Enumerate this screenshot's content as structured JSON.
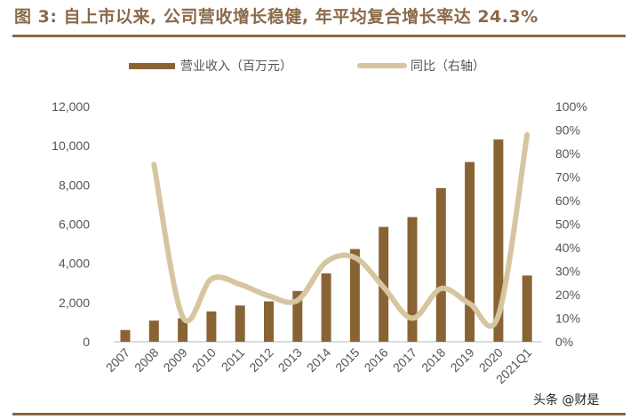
{
  "header": {
    "title": "图 3: 自上市以来, 公司营收增长稳健, 年平均复合增长率达 24.3%"
  },
  "legend": {
    "bar_label": "营业收入（百万元）",
    "line_label": "同比（右轴）"
  },
  "footer": {
    "watermark": "头条 @财是"
  },
  "colors": {
    "bar": "#8a6335",
    "line": "#d6c6a0",
    "rule": "#8b6540",
    "title": "#8a6a4a"
  },
  "chart_data": {
    "type": "bar+line",
    "title": "图 3: 自上市以来, 公司营收增长稳健, 年平均复合增长率达 24.3%",
    "categories": [
      "2007",
      "2008",
      "2009",
      "2010",
      "2011",
      "2012",
      "2013",
      "2014",
      "2015",
      "2016",
      "2017",
      "2018",
      "2019",
      "2020",
      "2021Q1"
    ],
    "series": [
      {
        "name": "营业收入（百万元）",
        "type": "bar",
        "axis": "left",
        "values": [
          600,
          1080,
          1200,
          1550,
          1850,
          2060,
          2590,
          3490,
          4730,
          5860,
          6360,
          7840,
          9170,
          10320,
          3380
        ]
      },
      {
        "name": "同比（右轴）",
        "type": "line",
        "axis": "right",
        "values": [
          null,
          75.4,
          10.6,
          26.7,
          24.4,
          19.5,
          17.6,
          33.9,
          35.8,
          23.2,
          10.0,
          22.6,
          16.2,
          11.2,
          88.0
        ]
      }
    ],
    "left_axis": {
      "ylim": [
        0,
        12000
      ],
      "ticks": [
        "0",
        "2,000",
        "4,000",
        "6,000",
        "8,000",
        "10,000",
        "12,000"
      ]
    },
    "right_axis": {
      "ylim": [
        0,
        100
      ],
      "ticks": [
        "0%",
        "10%",
        "20%",
        "30%",
        "40%",
        "50%",
        "60%",
        "70%",
        "80%",
        "90%",
        "100%"
      ]
    },
    "xlabel": "",
    "ylabel": "",
    "grid": false,
    "legend_position": "top"
  }
}
